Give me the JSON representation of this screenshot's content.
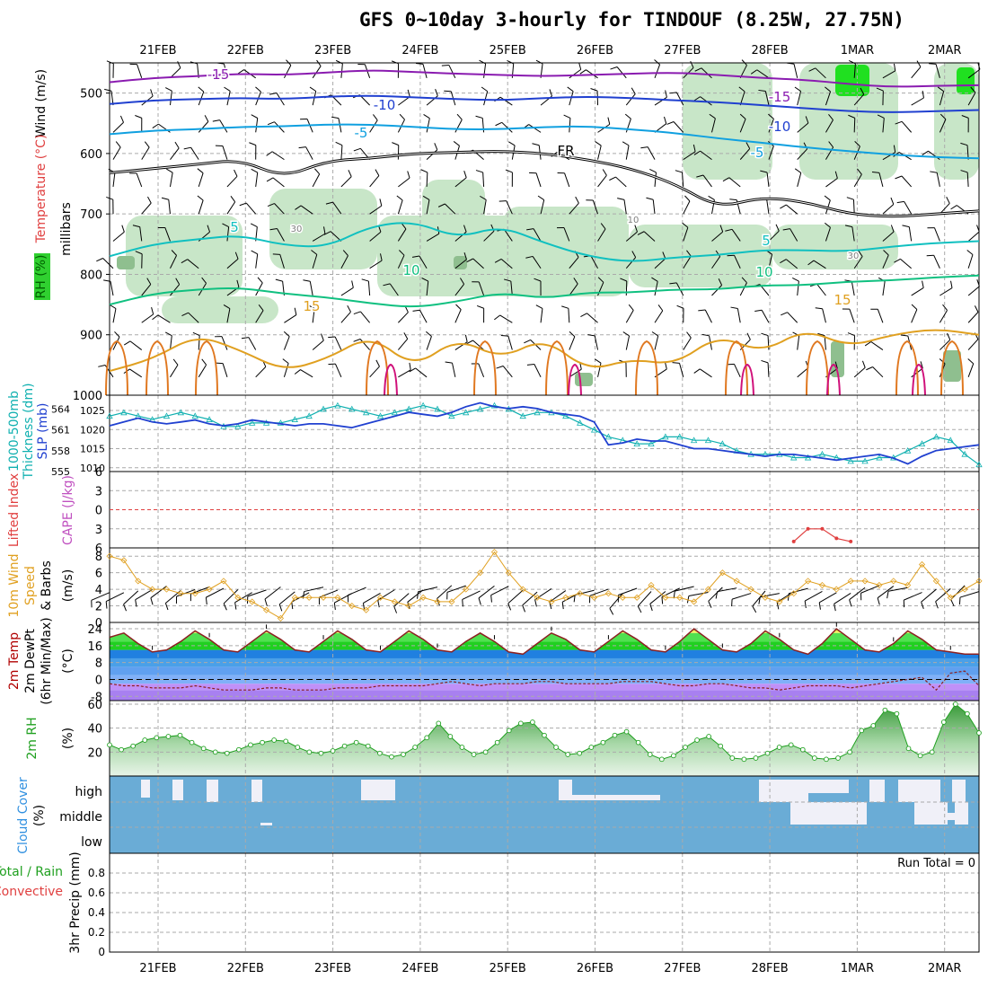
{
  "title": "GFS 0~10day 3-hourly for TINDOUF (8.25W, 27.75N)",
  "dates": [
    "21FEB",
    "22FEB",
    "23FEB",
    "24FEB",
    "25FEB",
    "26FEB",
    "27FEB",
    "28FEB",
    "1MAR",
    "2MAR"
  ],
  "chart_data": [
    {
      "type": "heatmap",
      "panel": "upper-air cross section",
      "ylabel": "millibars",
      "ylabels": [
        {
          "text": "Wind (m/s)",
          "color": "#000000"
        },
        {
          "text": "Temperature (°C)",
          "color": "#e04040"
        },
        {
          "text": "RH (%)",
          "color": "#006000"
        }
      ],
      "yticks": [
        500,
        600,
        700,
        800,
        900,
        1000
      ],
      "ylim": [
        1000,
        450
      ],
      "contour_labels": [
        {
          "text": "-15",
          "color": "#8a1bb0"
        },
        {
          "text": "-10",
          "color": "#2040d0"
        },
        {
          "text": "-5",
          "color": "#10a0e0"
        },
        {
          "text": "FR",
          "color": "#000000"
        },
        {
          "text": "5",
          "color": "#10c0c0"
        },
        {
          "text": "10",
          "color": "#10c080"
        },
        {
          "text": "15",
          "color": "#e0a020"
        },
        {
          "text": "-15",
          "color": "#8a1bb0"
        },
        {
          "text": "-10",
          "color": "#2040d0"
        },
        {
          "text": "-5",
          "color": "#10a0e0"
        },
        {
          "text": "5",
          "color": "#10c0c0"
        },
        {
          "text": "10",
          "color": "#10c080"
        },
        {
          "text": "15",
          "color": "#e0a020"
        },
        {
          "text": "30",
          "color": "#808080"
        },
        {
          "text": "10",
          "color": "#808080"
        },
        {
          "text": "30",
          "color": "#808080"
        }
      ],
      "isotherms": [
        {
          "label": "-15",
          "color": "#8a1bb0",
          "pressure": [
            482,
            475,
            472,
            468,
            470,
            466,
            462,
            465,
            468,
            470,
            472,
            470,
            468,
            466,
            470,
            475,
            478,
            485,
            490,
            488,
            487
          ]
        },
        {
          "label": "-10",
          "color": "#2040d0",
          "pressure": [
            518,
            512,
            510,
            508,
            510,
            506,
            504,
            507,
            510,
            512,
            508,
            506,
            508,
            512,
            515,
            520,
            525,
            530,
            532,
            530,
            528
          ]
        },
        {
          "label": "-5",
          "color": "#10a0e0",
          "pressure": [
            568,
            562,
            560,
            556,
            555,
            552,
            552,
            556,
            560,
            560,
            556,
            555,
            560,
            566,
            575,
            582,
            590,
            596,
            602,
            606,
            608
          ]
        },
        {
          "label": "FR",
          "color": "#000000",
          "pressure": [
            632,
            625,
            618,
            610,
            640,
            612,
            608,
            600,
            598,
            596,
            600,
            610,
            625,
            650,
            690,
            672,
            680,
            700,
            705,
            700,
            695
          ]
        },
        {
          "label": "5",
          "color": "#10c0c0",
          "pressure": [
            770,
            750,
            742,
            735,
            752,
            755,
            720,
            712,
            740,
            720,
            748,
            770,
            780,
            772,
            768,
            760,
            760,
            762,
            754,
            748,
            745
          ]
        },
        {
          "label": "10",
          "color": "#10c080",
          "pressure": [
            850,
            832,
            825,
            822,
            832,
            838,
            848,
            855,
            845,
            830,
            840,
            830,
            830,
            825,
            825,
            818,
            818,
            812,
            810,
            805,
            802
          ]
        },
        {
          "label": "15",
          "color": "#e0a020",
          "pressure": [
            960,
            940,
            900,
            925,
            960,
            940,
            900,
            955,
            905,
            940,
            905,
            960,
            940,
            950,
            900,
            930,
            890,
            920,
            900,
            890,
            900
          ]
        }
      ]
    },
    {
      "type": "line",
      "panel": "thickness and SLP",
      "ylabels": [
        {
          "text": "1000-500mb",
          "color": "#10b0b0"
        },
        {
          "text": "Thickness (dm)",
          "color": "#10b0b0"
        },
        {
          "text": "SLP (mb)",
          "color": "#2040d0"
        }
      ],
      "yticks_left": [
        555,
        558,
        561,
        564
      ],
      "yticks_right": [
        1010,
        1015,
        1020,
        1025
      ],
      "ylim_left": [
        555,
        566
      ],
      "ylim_right": [
        1009,
        1029
      ],
      "series": [
        {
          "name": "1000-500mb Thickness",
          "color": "#10b0b0",
          "axis": "left",
          "values": [
            563,
            563.5,
            563,
            562.5,
            563,
            563.5,
            563,
            562.5,
            561.5,
            561.5,
            562,
            562,
            562,
            562.5,
            563,
            564,
            564.5,
            564,
            563.5,
            563,
            563.5,
            564,
            564.5,
            564,
            563,
            563.5,
            564,
            564.5,
            564,
            563,
            563.5,
            563.5,
            563,
            562,
            561,
            560,
            559.5,
            559,
            559,
            560,
            560,
            559.5,
            559.5,
            559,
            558,
            557.5,
            557.5,
            557.5,
            557,
            557,
            557.5,
            557,
            556.5,
            556.5,
            557,
            557,
            558,
            559,
            560,
            559.5,
            557.5,
            556
          ]
        },
        {
          "name": "SLP",
          "color": "#2040d0",
          "axis": "right",
          "values": [
            1021,
            1022,
            1023,
            1022,
            1021.5,
            1022,
            1022.5,
            1021.5,
            1021,
            1021.5,
            1022.5,
            1022,
            1021.5,
            1021,
            1021.5,
            1021.5,
            1021,
            1020.5,
            1021.5,
            1022.5,
            1023.5,
            1024.5,
            1024,
            1023.5,
            1024.5,
            1026,
            1027,
            1026,
            1025.5,
            1026,
            1025.5,
            1024.5,
            1024,
            1023.5,
            1022,
            1016,
            1016.5,
            1017.5,
            1017,
            1017,
            1016,
            1015,
            1015,
            1014.5,
            1014,
            1013.5,
            1013,
            1013.5,
            1013.5,
            1013,
            1012.5,
            1012,
            1012.5,
            1013,
            1013.5,
            1012.5,
            1011,
            1013,
            1014.5,
            1015,
            1015.5,
            1016
          ]
        }
      ]
    },
    {
      "type": "line",
      "panel": "CAPE and Lifted Index",
      "ylabels": [
        {
          "text": "Lifted Index",
          "color": "#e04040"
        },
        {
          "text": "CAPE (J/kg)",
          "color": "#c050c0"
        }
      ],
      "yticks": [
        -6,
        -3,
        0,
        3,
        6
      ],
      "ylim": [
        -6,
        6
      ],
      "tick_labels": [
        "6",
        "3",
        "0",
        "3",
        "6"
      ],
      "series": [
        {
          "name": "Lifted Index",
          "color": "#e04040",
          "x": [
            48,
            49,
            50,
            51,
            52
          ],
          "values": [
            5,
            3,
            3,
            4.5,
            5
          ]
        }
      ]
    },
    {
      "type": "line",
      "panel": "10m Wind",
      "ylabels": [
        {
          "text": "10m Wind",
          "color": "#e0a020"
        },
        {
          "text": "Speed",
          "color": "#e0a020"
        },
        {
          "text": "& Barbs",
          "color": "#000000"
        },
        {
          "text": "(m/s)",
          "color": "#000000"
        }
      ],
      "yticks": [
        0,
        2,
        4,
        6,
        8
      ],
      "ylim": [
        0,
        9
      ],
      "series": [
        {
          "name": "10m Wind Speed",
          "color": "#e0a020",
          "values": [
            8,
            7.5,
            5,
            4,
            4,
            3.5,
            3.5,
            4,
            5,
            3,
            2.5,
            1.5,
            0.5,
            3,
            3,
            3,
            3,
            2,
            1.5,
            3,
            2.5,
            2,
            3,
            2.5,
            2.5,
            4,
            6,
            8.5,
            6,
            4,
            3,
            2.5,
            3,
            3.5,
            3,
            3.5,
            3,
            3,
            4.5,
            3,
            3,
            2.5,
            4,
            6,
            5,
            4,
            3,
            2.5,
            3.5,
            5,
            4.5,
            4,
            5,
            5,
            4.5,
            5,
            4.5,
            7,
            5,
            3,
            4,
            5
          ]
        }
      ]
    },
    {
      "type": "area",
      "panel": "2m Temperature",
      "ylabels": [
        {
          "text": "2m Temp",
          "color": "#b00000"
        },
        {
          "text": "2m DewPt",
          "color": "#000000"
        },
        {
          "text": "(6hr Min/Max)",
          "color": "#000000"
        },
        {
          "text": "(°C)",
          "color": "#000000"
        }
      ],
      "yticks": [
        -8,
        0,
        8,
        16,
        24
      ],
      "ylim": [
        -10,
        27
      ],
      "series": [
        {
          "name": "2m Temp",
          "color": "#8b2020",
          "values": [
            20,
            22,
            17,
            13,
            14,
            18,
            23,
            19,
            14,
            13,
            18,
            23,
            19,
            14,
            13,
            18,
            23,
            19,
            14,
            13,
            18,
            23,
            19,
            14,
            13,
            18,
            22,
            18,
            13,
            12,
            17,
            22,
            19,
            14,
            13,
            18,
            23,
            19,
            14,
            13,
            18,
            24,
            19,
            14,
            13,
            17,
            23,
            19,
            14,
            12,
            17,
            24,
            19,
            14,
            13,
            17,
            23,
            19,
            14,
            13,
            12,
            12
          ]
        },
        {
          "name": "2m DewPt",
          "color": "#8b2020",
          "values": [
            -2,
            -3,
            -3,
            -4,
            -4,
            -4,
            -3,
            -4,
            -5,
            -5,
            -5,
            -4,
            -4,
            -5,
            -5,
            -5,
            -4,
            -4,
            -4,
            -3,
            -3,
            -3,
            -3,
            -2,
            -1,
            -2,
            -3,
            -2,
            -2,
            -2,
            -1,
            -1,
            -2,
            -2,
            -2,
            -2,
            -1,
            -1,
            -1,
            -2,
            -3,
            -3,
            -2,
            -2,
            -3,
            -4,
            -4,
            -5,
            -4,
            -3,
            -3,
            -3,
            -4,
            -3,
            -2,
            -1,
            0,
            1,
            -5,
            3,
            4,
            -3
          ]
        }
      ]
    },
    {
      "type": "area",
      "panel": "2m RH",
      "ylabels": [
        {
          "text": "2m RH",
          "color": "#20a020"
        },
        {
          "text": "(%)",
          "color": "#000000"
        }
      ],
      "yticks": [
        20,
        40,
        60
      ],
      "ylim": [
        0,
        63
      ],
      "series": [
        {
          "name": "2m RH",
          "color": "#20a020",
          "values": [
            26,
            22,
            25,
            30,
            32,
            33,
            34,
            28,
            23,
            20,
            19,
            22,
            26,
            28,
            30,
            29,
            24,
            20,
            19,
            21,
            25,
            28,
            25,
            19,
            16,
            18,
            24,
            32,
            44,
            33,
            24,
            18,
            20,
            28,
            38,
            44,
            45,
            34,
            24,
            18,
            19,
            24,
            28,
            34,
            37,
            28,
            18,
            14,
            17,
            24,
            30,
            33,
            25,
            15,
            14,
            15,
            19,
            24,
            26,
            22,
            15,
            14,
            15,
            20,
            38,
            42,
            55,
            52,
            23,
            17,
            20,
            45,
            60,
            52,
            36
          ]
        }
      ]
    },
    {
      "type": "area",
      "panel": "Cloud Cover",
      "ylabels": [
        {
          "text": "Cloud Cover",
          "color": "#3090e0"
        },
        {
          "text": "(%)",
          "color": "#000000"
        }
      ],
      "levels": [
        "high",
        "middle",
        "low"
      ]
    },
    {
      "type": "bar",
      "panel": "3hr Precip",
      "ylabels": [
        {
          "text": "Total / Rain",
          "color": "#20a020"
        },
        {
          "text": "Convective",
          "color": "#e04040"
        },
        {
          "text": "3hr Precip (mm)",
          "color": "#000000"
        }
      ],
      "yticks": [
        0,
        0.2,
        0.4,
        0.6,
        0.8
      ],
      "ylim": [
        0,
        1
      ],
      "run_total": "Run Total = 0",
      "values": []
    }
  ],
  "colors": {
    "rh_fill": "#c8e6c8",
    "rh_dark": "#8fbf8f",
    "rh_bright": "#20e020",
    "cloud_bg": "#6aacd6",
    "cloud_white": "#f0f0f8"
  }
}
